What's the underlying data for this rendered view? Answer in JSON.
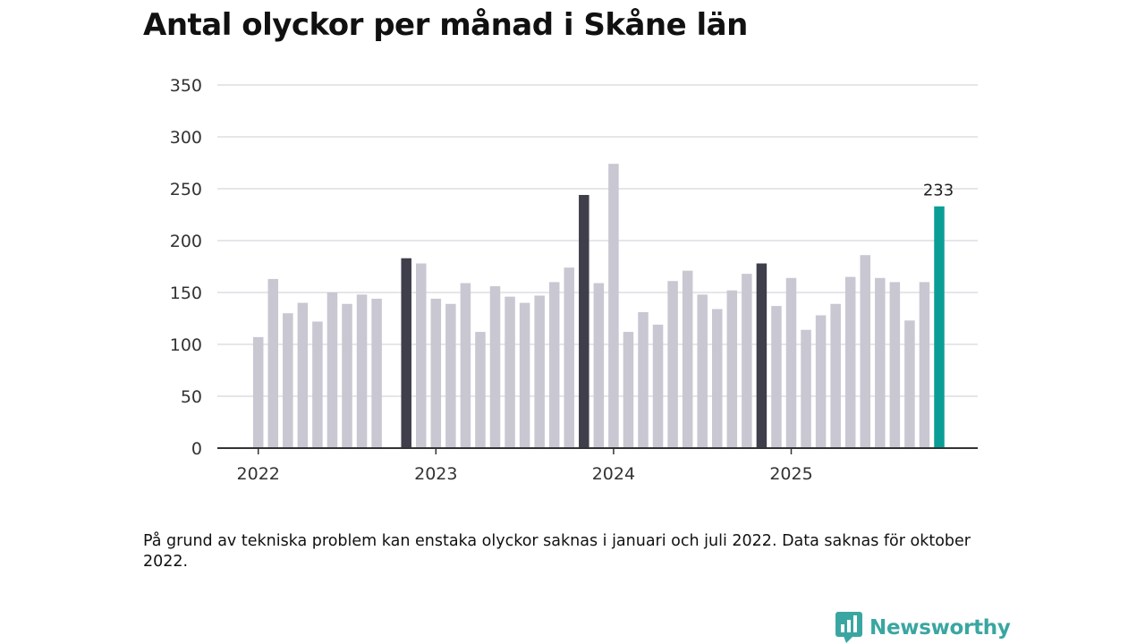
{
  "colors": {
    "bar_default": "#c8c7d2",
    "bar_highlight": "#3f3e4b",
    "bar_latest": "#0a9e96",
    "grid": "#dedde3",
    "axis": "#333333",
    "brand": "#3aa6a1"
  },
  "chart_data": {
    "type": "bar",
    "title": "Antal olyckor per månad i Skåne län",
    "xlabel": "",
    "ylabel": "",
    "ylim": [
      0,
      350
    ],
    "yticks": [
      0,
      50,
      100,
      150,
      200,
      250,
      300,
      350
    ],
    "grid": true,
    "x_tick_labels": [
      "2022",
      "2023",
      "2024",
      "2025"
    ],
    "x_tick_months": [
      "2022-01",
      "2023-01",
      "2024-01",
      "2025-01"
    ],
    "months": [
      "2022-01",
      "2022-02",
      "2022-03",
      "2022-04",
      "2022-05",
      "2022-06",
      "2022-07",
      "2022-08",
      "2022-09",
      "2022-10",
      "2022-11",
      "2022-12",
      "2023-01",
      "2023-02",
      "2023-03",
      "2023-04",
      "2023-05",
      "2023-06",
      "2023-07",
      "2023-08",
      "2023-09",
      "2023-10",
      "2023-11",
      "2023-12",
      "2024-01",
      "2024-02",
      "2024-03",
      "2024-04",
      "2024-05",
      "2024-06",
      "2024-07",
      "2024-08",
      "2024-09",
      "2024-10",
      "2024-11",
      "2024-12",
      "2025-01",
      "2025-02",
      "2025-03",
      "2025-04",
      "2025-05",
      "2025-06",
      "2025-07",
      "2025-08",
      "2025-09",
      "2025-10",
      "2025-11"
    ],
    "values": [
      107,
      163,
      130,
      140,
      122,
      150,
      139,
      148,
      144,
      null,
      183,
      178,
      144,
      139,
      159,
      112,
      156,
      146,
      140,
      147,
      160,
      174,
      244,
      159,
      274,
      112,
      131,
      119,
      161,
      171,
      148,
      134,
      152,
      168,
      178,
      137,
      164,
      114,
      128,
      139,
      165,
      186,
      164,
      160,
      123,
      160,
      233
    ],
    "highlight_months": [
      "2022-11",
      "2023-11",
      "2024-11"
    ],
    "latest_month": "2025-11",
    "latest_label": "233"
  },
  "footnote": "På grund av tekniska problem kan enstaka olyckor saknas i januari och juli 2022. Data saknas för oktober 2022.",
  "brand": {
    "name": "Newsworthy",
    "icon": "bar-chart-speech-bubble-icon"
  }
}
